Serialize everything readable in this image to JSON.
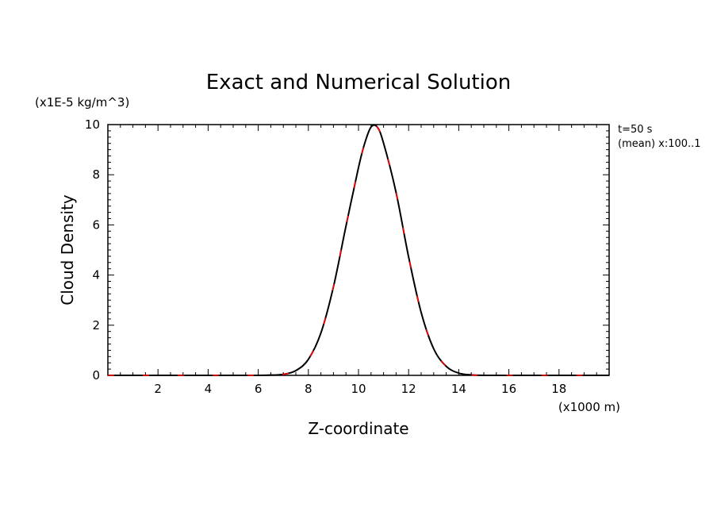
{
  "chart_data": {
    "type": "line",
    "title": "Exact and Numerical Solution",
    "xlabel": "Z-coordinate",
    "ylabel": "Cloud Density",
    "x_unit_label": "(x1000 m)",
    "y_unit_label": "(x1E-5 kg/m^3)",
    "xlim": [
      0,
      20
    ],
    "ylim": [
      0,
      10
    ],
    "xticks": [
      2,
      4,
      6,
      8,
      10,
      12,
      14,
      16,
      18
    ],
    "yticks": [
      0,
      2,
      4,
      6,
      8,
      10
    ],
    "annotations": [
      "t=50 s",
      "(mean) x:100..1"
    ],
    "grid": false,
    "series": [
      {
        "color": "#000000",
        "style": "solid",
        "x": [
          0,
          1,
          2,
          3,
          4,
          5,
          6,
          6.5,
          7,
          7.5,
          8,
          8.5,
          9,
          9.5,
          10,
          10.25,
          10.5,
          10.75,
          11,
          11.5,
          12,
          12.5,
          13,
          13.5,
          14,
          14.5,
          15,
          16,
          17,
          18,
          19,
          20
        ],
        "values": [
          0,
          0,
          0,
          0,
          0,
          0,
          0,
          0.01,
          0.04,
          0.19,
          0.64,
          1.69,
          3.53,
          5.95,
          8.29,
          9.26,
          9.9,
          9.9,
          9.26,
          7.29,
          4.72,
          2.51,
          1.06,
          0.36,
          0.09,
          0.02,
          0,
          0,
          0,
          0,
          0,
          0
        ]
      },
      {
        "color": "#ff0000",
        "style": "dashed",
        "x": [
          0,
          1,
          2,
          3,
          4,
          5,
          6,
          6.5,
          7,
          7.5,
          8,
          8.5,
          9,
          9.5,
          10,
          10.25,
          10.5,
          10.75,
          11,
          11.5,
          12,
          12.5,
          13,
          13.5,
          14,
          14.5,
          15,
          16,
          17,
          18,
          19,
          20
        ],
        "values": [
          0,
          0,
          0,
          0,
          0,
          0,
          0,
          0.01,
          0.04,
          0.19,
          0.64,
          1.69,
          3.53,
          5.95,
          8.29,
          9.26,
          9.9,
          9.9,
          9.26,
          7.29,
          4.72,
          2.51,
          1.06,
          0.36,
          0.09,
          0.02,
          0,
          0,
          0,
          0,
          0,
          0
        ]
      }
    ]
  }
}
